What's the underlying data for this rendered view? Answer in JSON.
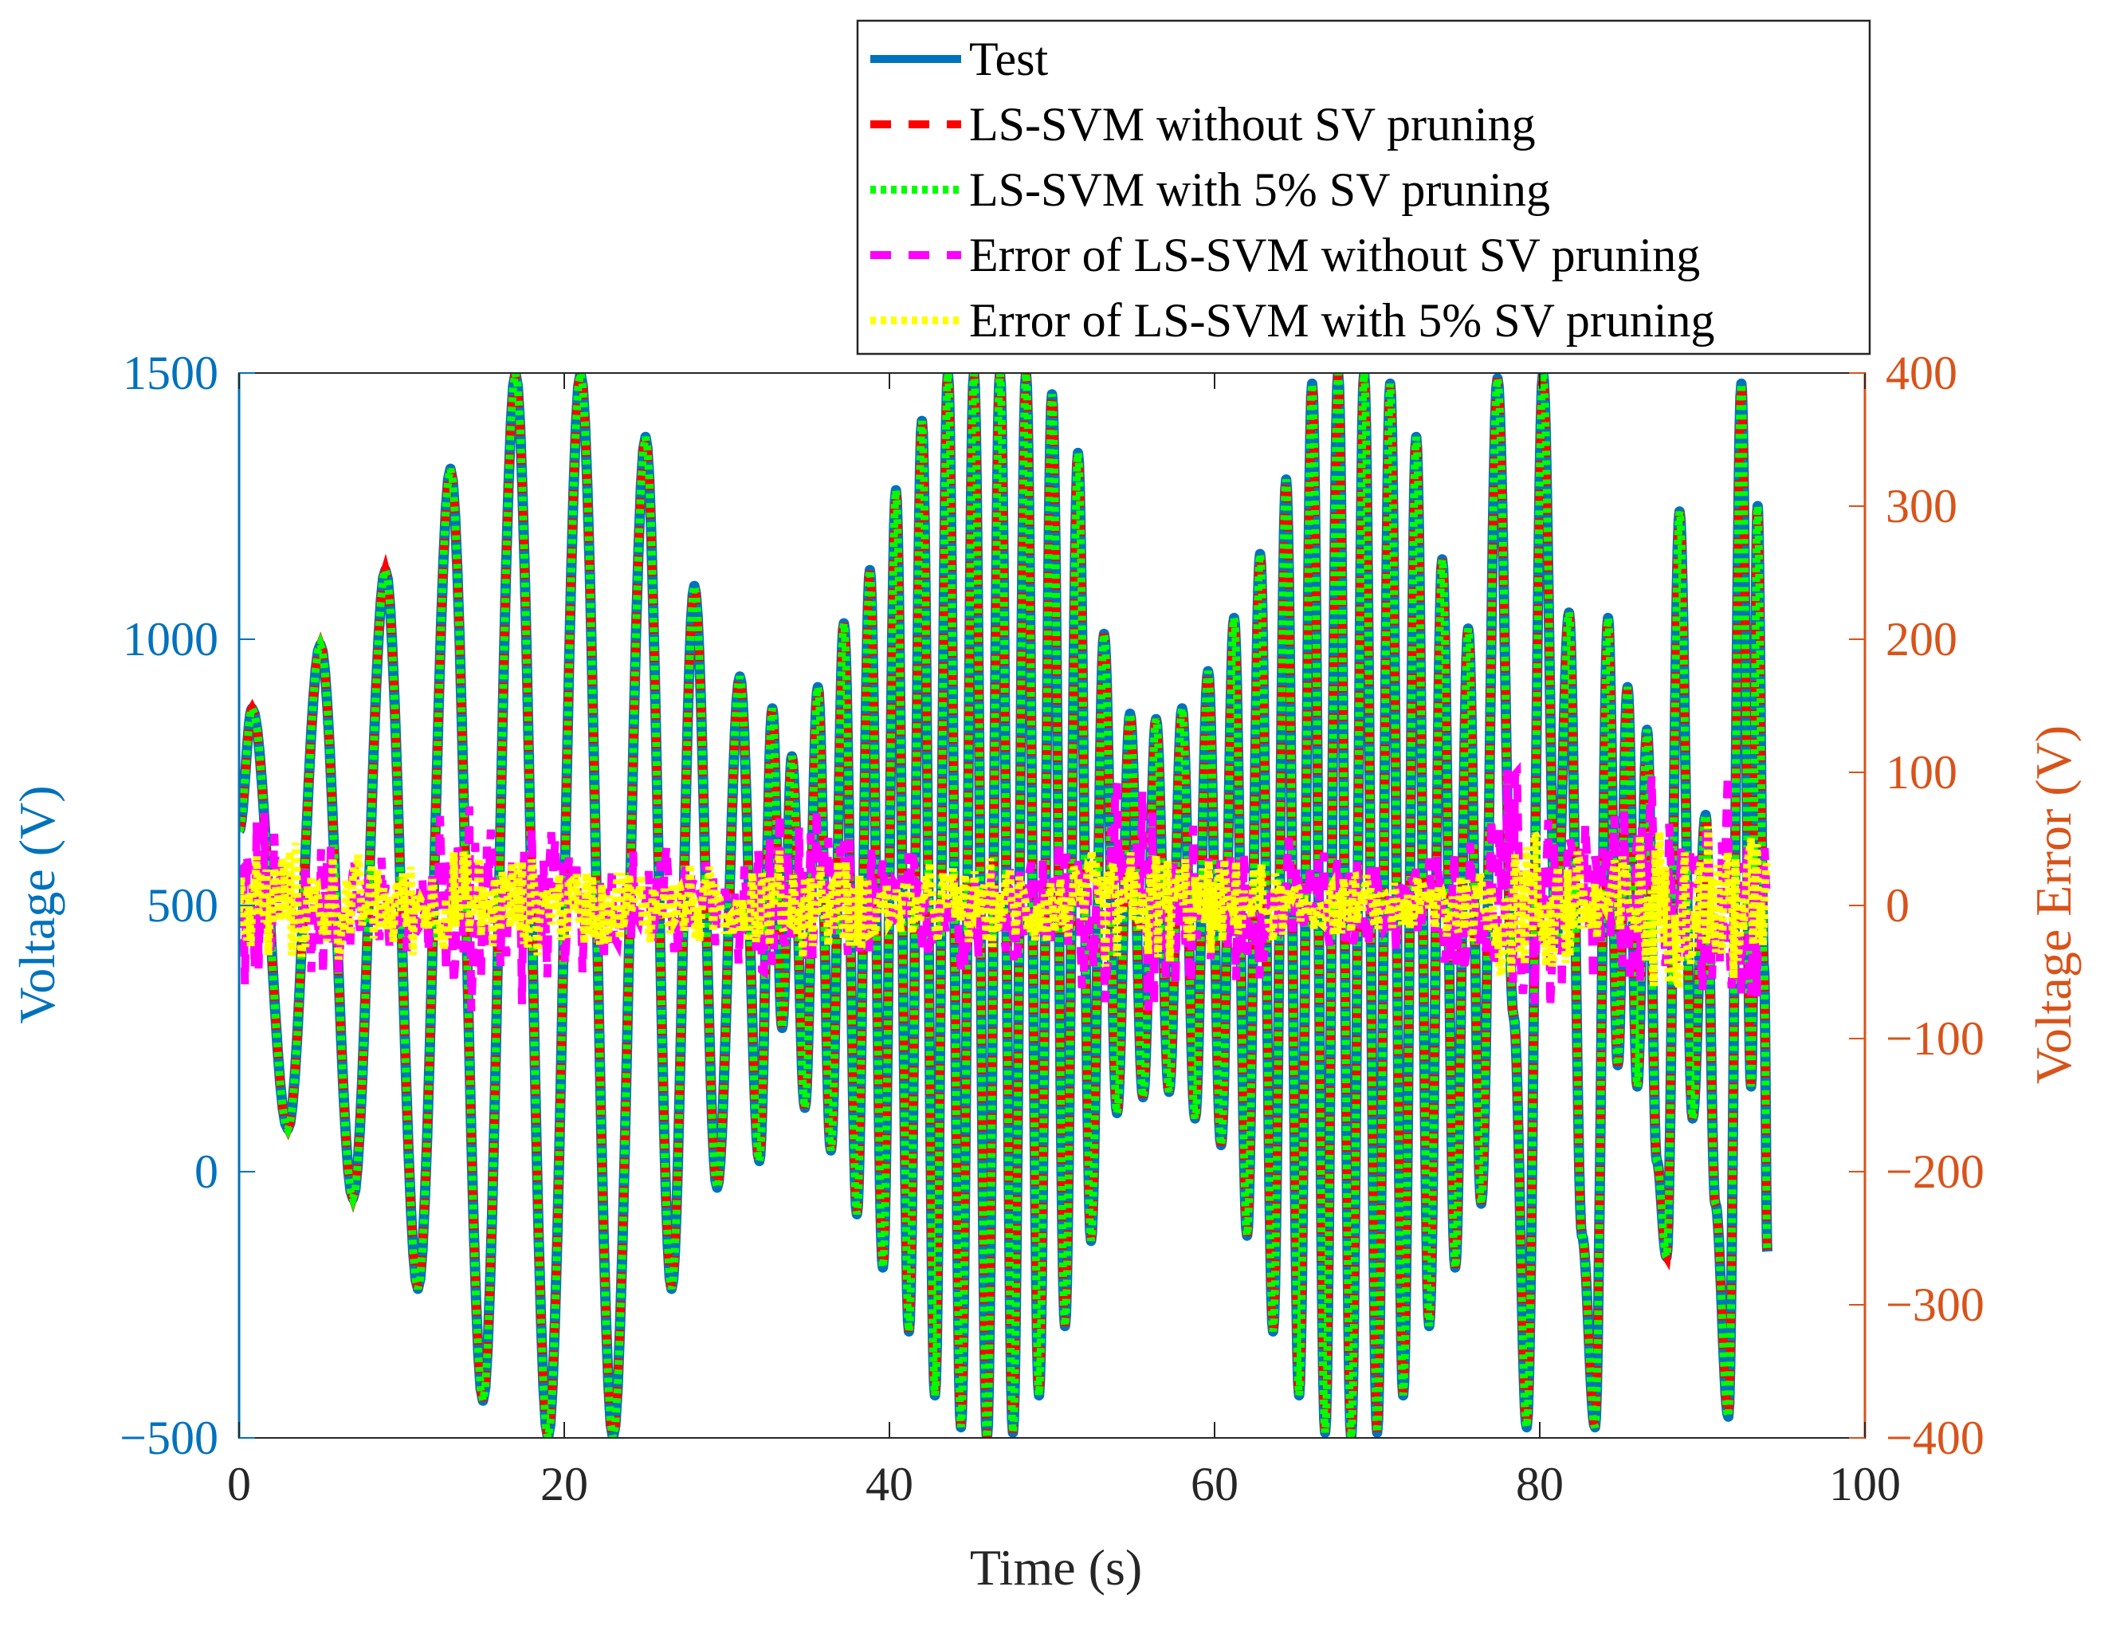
{
  "chart_data": {
    "type": "line",
    "title": "",
    "xlabel": "Time (s)",
    "ylabel_left": "Voltage (V)",
    "ylabel_right": "Voltage Error (V)",
    "xlim": [
      0,
      100
    ],
    "ylim_left": [
      -500,
      1500
    ],
    "ylim_right": [
      -400,
      400
    ],
    "x_ticks": [
      0,
      20,
      40,
      60,
      80,
      100
    ],
    "y_ticks_left": [
      -500,
      0,
      500,
      1000,
      1500
    ],
    "y_ticks_right": [
      -400,
      -300,
      -200,
      -100,
      0,
      100,
      200,
      300,
      400
    ],
    "y_tick_labels_left": [
      "−500",
      "0",
      "500",
      "1000",
      "1500"
    ],
    "y_tick_labels_right": [
      "−400",
      "−300",
      "−200",
      "−100",
      "0",
      "100",
      "200",
      "300",
      "400"
    ],
    "x_tick_labels": [
      "0",
      "20",
      "40",
      "60",
      "80",
      "100"
    ],
    "grid": false,
    "legend_position": "top-right (above plot)",
    "colors": {
      "left_axis": "#0072BD",
      "right_axis": "#D95319",
      "test": "#0072BD",
      "lssvm_no_pruning": "#FF0000",
      "lssvm_pruning": "#00FF00",
      "error_no_pruning": "#FF00FF",
      "error_pruning": "#FFFF00"
    },
    "series": [
      {
        "name": "Test",
        "axis": "left",
        "style": "solid",
        "key": "test",
        "x_end": 94,
        "peaks": [
          [
            0.8,
            870
          ],
          [
            3.0,
            80
          ],
          [
            5.0,
            990
          ],
          [
            7.0,
            -50
          ],
          [
            9.0,
            1130
          ],
          [
            11.0,
            -220
          ],
          [
            13.0,
            1320
          ],
          [
            15.0,
            -430
          ],
          [
            17.0,
            1500
          ],
          [
            19.0,
            -500
          ],
          [
            21.0,
            1500
          ],
          [
            23.0,
            -500
          ],
          [
            25.0,
            1380
          ],
          [
            26.6,
            -220
          ],
          [
            28.0,
            1100
          ],
          [
            29.4,
            -30
          ],
          [
            30.8,
            930
          ],
          [
            32.0,
            20
          ],
          [
            32.8,
            870
          ],
          [
            33.4,
            270
          ],
          [
            34.0,
            780
          ],
          [
            34.8,
            120
          ],
          [
            35.6,
            910
          ],
          [
            36.4,
            40
          ],
          [
            37.2,
            1030
          ],
          [
            38.0,
            -80
          ],
          [
            38.8,
            1130
          ],
          [
            39.6,
            -180
          ],
          [
            40.4,
            1280
          ],
          [
            41.2,
            -300
          ],
          [
            42.0,
            1410
          ],
          [
            42.8,
            -420
          ],
          [
            43.6,
            1500
          ],
          [
            44.4,
            -480
          ],
          [
            45.2,
            1500
          ],
          [
            46.0,
            -500
          ],
          [
            46.8,
            1500
          ],
          [
            47.6,
            -490
          ],
          [
            48.4,
            1500
          ],
          [
            49.2,
            -420
          ],
          [
            50.0,
            1460
          ],
          [
            50.8,
            -290
          ],
          [
            51.6,
            1350
          ],
          [
            52.4,
            -130
          ],
          [
            53.2,
            1010
          ],
          [
            54.0,
            110
          ],
          [
            54.8,
            860
          ],
          [
            55.6,
            140
          ],
          [
            56.4,
            850
          ],
          [
            57.2,
            150
          ],
          [
            58.0,
            870
          ],
          [
            58.8,
            100
          ],
          [
            59.6,
            940
          ],
          [
            60.4,
            50
          ],
          [
            61.2,
            1040
          ],
          [
            62.0,
            -120
          ],
          [
            62.8,
            1160
          ],
          [
            63.6,
            -300
          ],
          [
            64.4,
            1300
          ],
          [
            65.2,
            -420
          ],
          [
            66.0,
            1480
          ],
          [
            66.8,
            -490
          ],
          [
            67.6,
            1500
          ],
          [
            68.4,
            -500
          ],
          [
            69.2,
            1500
          ],
          [
            70.0,
            -490
          ],
          [
            70.8,
            1480
          ],
          [
            71.6,
            -420
          ],
          [
            72.4,
            1380
          ],
          [
            73.2,
            -290
          ],
          [
            74.0,
            1150
          ],
          [
            74.8,
            -180
          ],
          [
            75.6,
            1020
          ],
          [
            76.4,
            -60
          ],
          [
            77.4,
            1490
          ],
          [
            78.4,
            290
          ],
          [
            79.2,
            -480
          ],
          [
            80.2,
            1500
          ],
          [
            81.0,
            430
          ],
          [
            81.8,
            1050
          ],
          [
            82.6,
            -120
          ],
          [
            83.4,
            -480
          ],
          [
            84.2,
            1040
          ],
          [
            84.8,
            200
          ],
          [
            85.4,
            910
          ],
          [
            86.0,
            160
          ],
          [
            86.6,
            830
          ],
          [
            87.2,
            20
          ],
          [
            87.8,
            -160
          ],
          [
            88.6,
            1240
          ],
          [
            89.4,
            100
          ],
          [
            90.2,
            670
          ],
          [
            90.8,
            -60
          ],
          [
            91.6,
            -460
          ],
          [
            92.4,
            1480
          ],
          [
            93.0,
            160
          ],
          [
            93.4,
            1250
          ],
          [
            93.8,
            380
          ],
          [
            94.0,
            -150
          ]
        ]
      },
      {
        "name": "LS-SVM without SV pruning",
        "axis": "left",
        "style": "dashed",
        "key": "lssvm_no_pruning",
        "amplitude_factor": 1.0,
        "x_end": 94
      },
      {
        "name": "LS-SVM with 5% SV pruning",
        "axis": "left",
        "style": "dotted",
        "key": "lssvm_pruning",
        "amplitude_factor": 1.0,
        "x_end": 94
      },
      {
        "name": "Error of LS-SVM without SV pruning",
        "axis": "right",
        "style": "dashed",
        "key": "error_no_pruning",
        "x_end": 94,
        "envelope": [
          [
            0,
            100
          ],
          [
            10,
            40
          ],
          [
            14,
            110
          ],
          [
            20,
            60
          ],
          [
            30,
            50
          ],
          [
            33,
            90
          ],
          [
            40,
            50
          ],
          [
            50,
            60
          ],
          [
            55,
            110
          ],
          [
            60,
            70
          ],
          [
            70,
            40
          ],
          [
            76,
            60
          ],
          [
            78,
            130
          ],
          [
            84,
            90
          ],
          [
            88,
            120
          ],
          [
            92,
            110
          ],
          [
            94,
            80
          ]
        ]
      },
      {
        "name": "Error of LS-SVM with 5% SV pruning",
        "axis": "right",
        "style": "dotted",
        "key": "error_pruning",
        "x_end": 94,
        "envelope": [
          [
            0,
            60
          ],
          [
            10,
            40
          ],
          [
            14,
            50
          ],
          [
            20,
            40
          ],
          [
            30,
            35
          ],
          [
            33,
            50
          ],
          [
            40,
            35
          ],
          [
            50,
            40
          ],
          [
            55,
            60
          ],
          [
            60,
            40
          ],
          [
            70,
            25
          ],
          [
            76,
            45
          ],
          [
            78,
            80
          ],
          [
            84,
            60
          ],
          [
            88,
            70
          ],
          [
            92,
            90
          ],
          [
            94,
            60
          ]
        ]
      }
    ]
  }
}
